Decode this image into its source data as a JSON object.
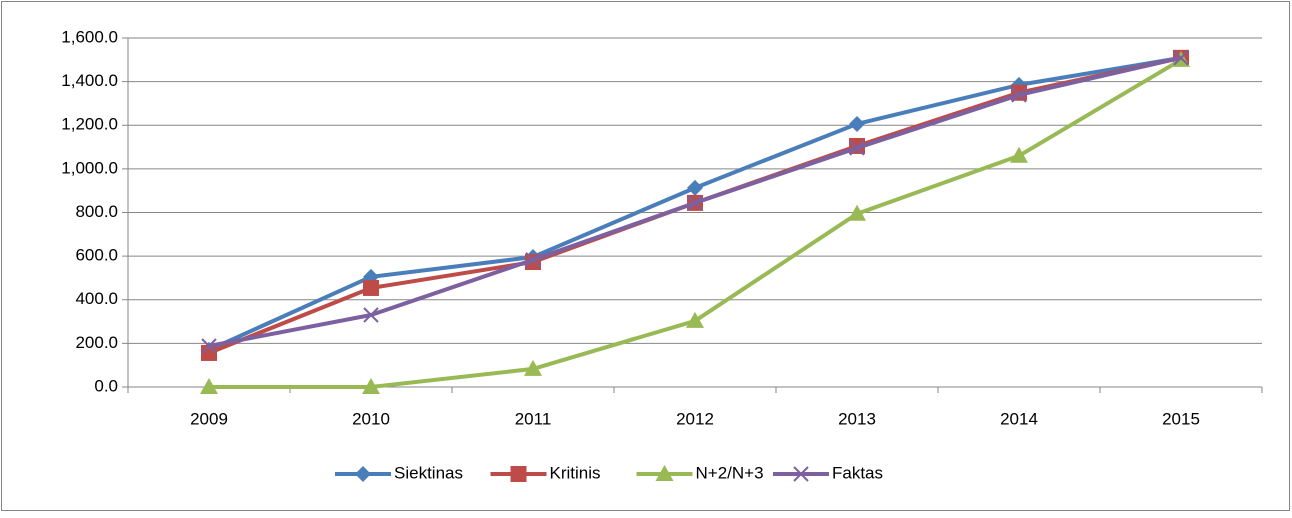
{
  "chart_data": {
    "type": "line",
    "categories": [
      "2009",
      "2010",
      "2011",
      "2012",
      "2013",
      "2014",
      "2015"
    ],
    "series": [
      {
        "name": "Siektinas",
        "color": "#4a7ebb",
        "marker": "diamond",
        "values": [
          170,
          505,
          596,
          913,
          1206,
          1385,
          1509
        ]
      },
      {
        "name": "Kritinis",
        "color": "#be4b48",
        "marker": "square",
        "values": [
          156,
          454,
          573,
          844,
          1105,
          1349,
          1509
        ]
      },
      {
        "name": "N+2/N+3",
        "color": "#98b954",
        "marker": "triangle",
        "values": [
          0,
          0,
          83,
          303,
          794,
          1060,
          1500
        ]
      },
      {
        "name": "Faktas",
        "color": "#7d60a0",
        "marker": "x",
        "values": [
          188,
          330,
          583,
          844,
          1096,
          1339,
          1509
        ]
      }
    ],
    "ylim": [
      0,
      1600
    ],
    "yticks": [
      {
        "value": 0,
        "label": "0.0"
      },
      {
        "value": 200,
        "label": "200.0"
      },
      {
        "value": 400,
        "label": "400.0"
      },
      {
        "value": 600,
        "label": "600.0"
      },
      {
        "value": 800,
        "label": "800.0"
      },
      {
        "value": 1000,
        "label": "1,000.0"
      },
      {
        "value": 1200,
        "label": "1,200.0"
      },
      {
        "value": 1400,
        "label": "1,400.0"
      },
      {
        "value": 1600,
        "label": "1,600.0"
      }
    ],
    "grid": true,
    "legend": "bottom"
  }
}
